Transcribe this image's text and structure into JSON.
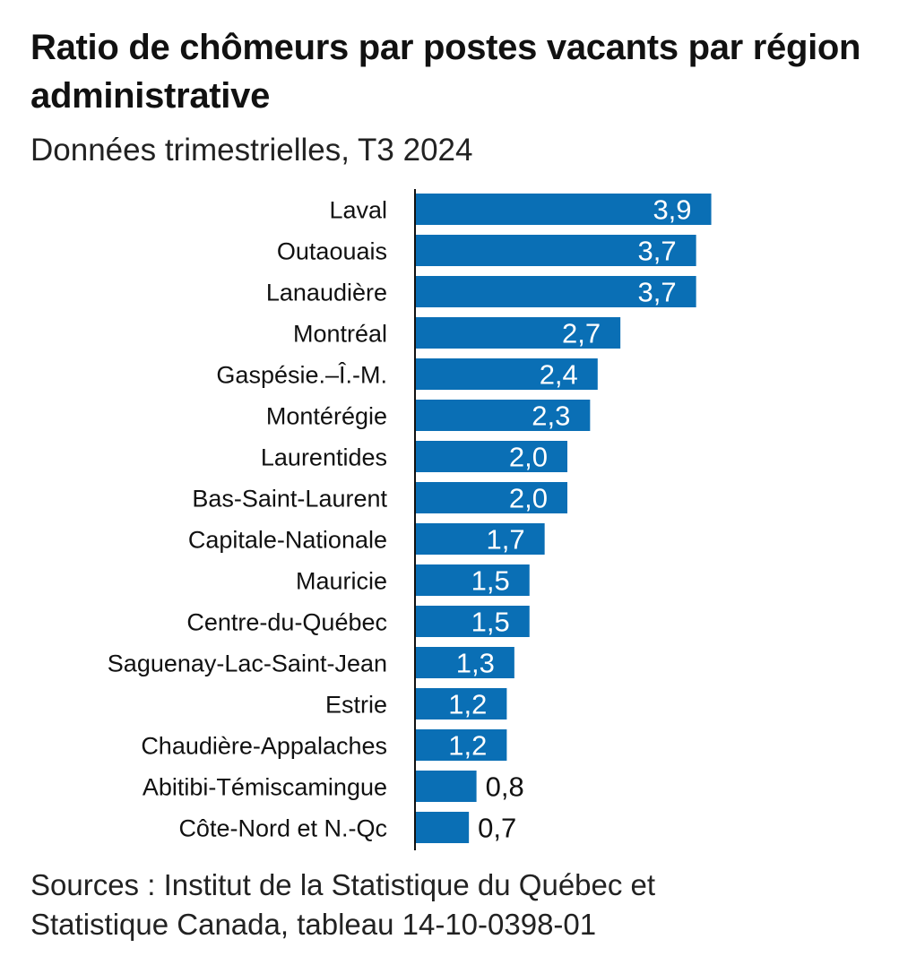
{
  "chart_data": {
    "type": "bar",
    "orientation": "horizontal",
    "title": "Ratio de chômeurs par postes vacants par région administrative",
    "subtitle": "Données trimestrielles, T3 2024",
    "categories": [
      "Laval",
      "Outaouais",
      "Lanaudière",
      "Montréal",
      "Gaspésie.–Î.-M.",
      "Montérégie",
      "Laurentides",
      "Bas-Saint-Laurent",
      "Capitale-Nationale",
      "Mauricie",
      "Centre-du-Québec",
      "Saguenay-Lac-Saint-Jean",
      "Estrie",
      "Chaudière-Appalaches",
      "Abitibi-Témiscamingue",
      "Côte-Nord et N.-Qc"
    ],
    "values": [
      3.9,
      3.7,
      3.7,
      2.7,
      2.4,
      2.3,
      2.0,
      2.0,
      1.7,
      1.5,
      1.5,
      1.3,
      1.2,
      1.2,
      0.8,
      0.7
    ],
    "value_labels": [
      "3,9",
      "3,7",
      "3,7",
      "2,7",
      "2,4",
      "2,3",
      "2,0",
      "2,0",
      "1,7",
      "1,5",
      "1,5",
      "1,3",
      "1,2",
      "1,2",
      "0,8",
      "0,7"
    ],
    "xlim": [
      0,
      4
    ],
    "bar_color": "#0a6fb5",
    "inside_label_color": "#ffffff",
    "outside_label_color": "#111111",
    "axis_color": "#111111",
    "grid": false,
    "legend": "none"
  },
  "source": {
    "line1": "Sources : Institut de la Statistique du Québec et",
    "line2": "Statistique Canada, tableau 14-10-0398-01"
  }
}
